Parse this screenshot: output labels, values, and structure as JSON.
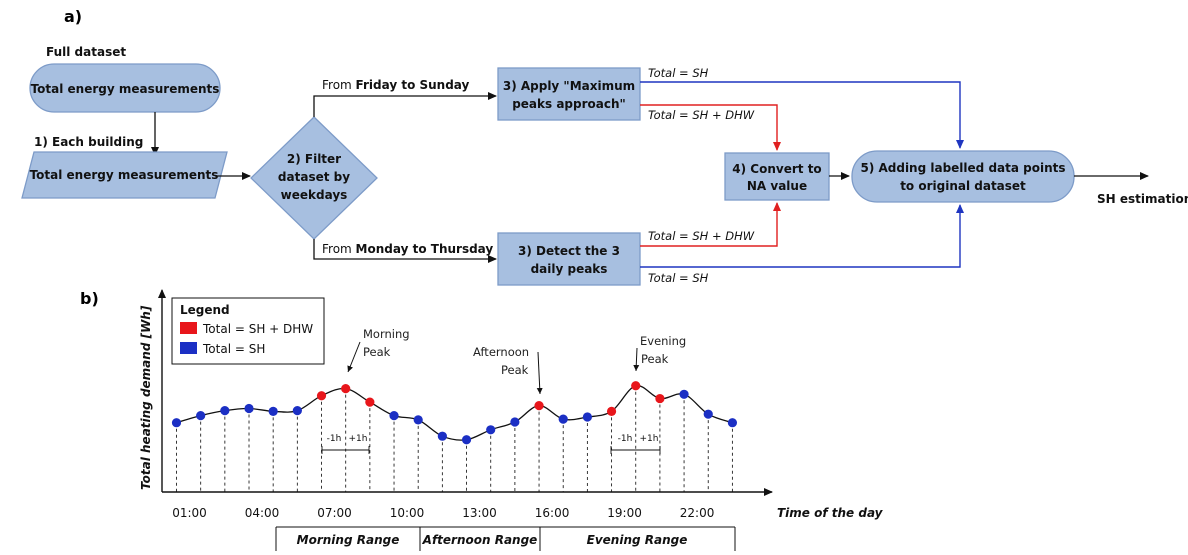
{
  "panel_a": {
    "label": "a)",
    "full_dataset": "Full dataset",
    "step0": "Total energy measurements",
    "step1_label": "1) Each building",
    "step1_box": "Total energy measurements",
    "step2": [
      "2) Filter",
      "dataset by",
      "weekdays"
    ],
    "branch_top": {
      "prefix": "From ",
      "bold": "Friday to Sunday"
    },
    "branch_bottom": {
      "prefix": "From ",
      "bold": "Monday to Thursday"
    },
    "step3a": [
      "3) Apply \"Maximum",
      "peaks approach\""
    ],
    "step3b": [
      "3) Detect the 3",
      "daily peaks"
    ],
    "step4": [
      "4) Convert to",
      "NA value"
    ],
    "step5": [
      "5) Adding labelled data points",
      "to original dataset"
    ],
    "output": "SH estimation",
    "edge_sh": "Total = SH",
    "edge_shdhw": "Total = SH + DHW"
  },
  "panel_b": {
    "label": "b)",
    "legend_title": "Legend",
    "legend_items": [
      {
        "label": "Total = SH + DHW",
        "color": "#e8161b"
      },
      {
        "label": "Total = SH",
        "color": "#1b2fc4"
      }
    ],
    "y_axis_label": "Total heating demand [Wh]",
    "x_axis_label": "Time of the day",
    "peaks": {
      "morning": [
        "Morning",
        "Peak"
      ],
      "afternoon": [
        "Afternoon",
        "Peak"
      ],
      "evening": [
        "Evening",
        "Peak"
      ]
    },
    "offset_minus": "-1h",
    "offset_plus": "+1h",
    "ranges": [
      "Morning Range",
      "Afternoon Range",
      "Evening Range"
    ],
    "colors": {
      "peak": "#e8161b",
      "base": "#1b2fc4",
      "sh_line": "#1f35c0",
      "dhw_line": "#e02020"
    }
  },
  "chart_data": {
    "type": "line",
    "x": [
      "01:00",
      "02:00",
      "03:00",
      "04:00",
      "05:00",
      "06:00",
      "07:00",
      "08:00",
      "09:00",
      "10:00",
      "11:00",
      "12:00",
      "13:00",
      "14:00",
      "15:00",
      "16:00",
      "17:00",
      "18:00",
      "19:00",
      "20:00",
      "21:00",
      "22:00",
      "23:00",
      "24:00"
    ],
    "x_tick_labels": [
      "01:00",
      "04:00",
      "07:00",
      "10:00",
      "13:00",
      "16:00",
      "19:00",
      "22:00"
    ],
    "values": [
      0.3,
      0.4,
      0.47,
      0.5,
      0.46,
      0.47,
      0.68,
      0.78,
      0.59,
      0.4,
      0.34,
      0.11,
      0.06,
      0.2,
      0.31,
      0.54,
      0.35,
      0.38,
      0.46,
      0.82,
      0.64,
      0.7,
      0.42,
      0.3
    ],
    "peak_flags": [
      false,
      false,
      false,
      false,
      false,
      false,
      true,
      true,
      true,
      false,
      false,
      false,
      false,
      false,
      false,
      true,
      false,
      false,
      true,
      true,
      true,
      false,
      false,
      false
    ],
    "xlabel": "Time of the day",
    "ylabel": "Total heating demand [Wh]"
  }
}
